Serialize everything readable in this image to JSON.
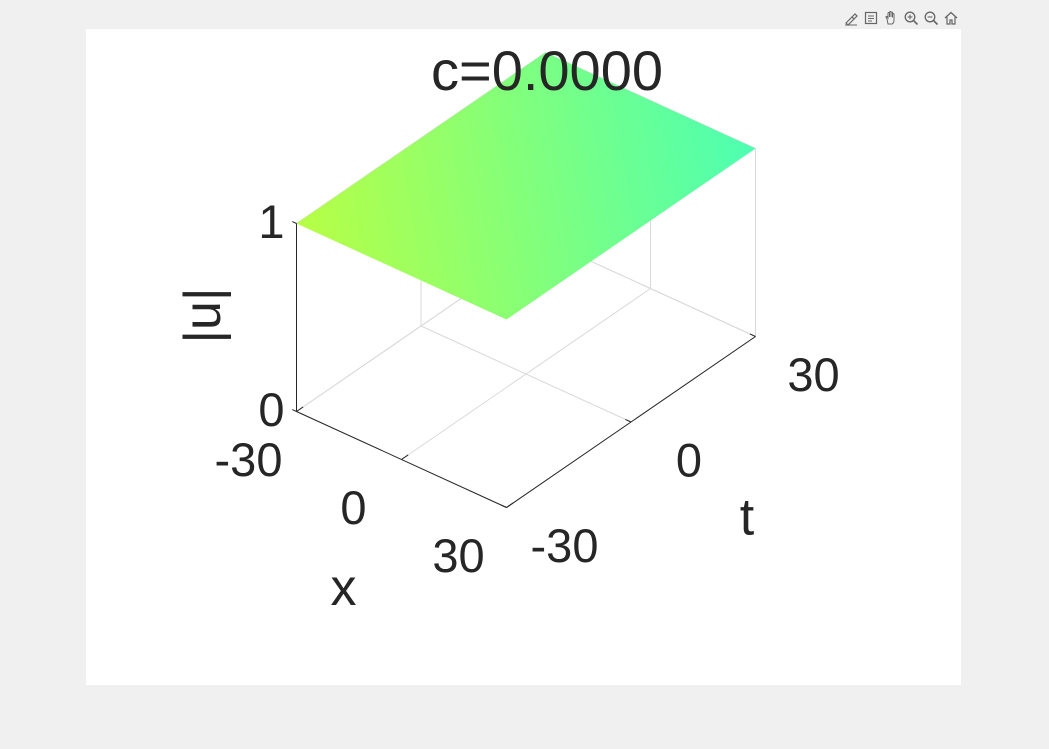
{
  "toolbar": {
    "buttons": [
      {
        "name": "brush-data-icon"
      },
      {
        "name": "data-tips-icon"
      },
      {
        "name": "pan-icon"
      },
      {
        "name": "zoom-in-icon"
      },
      {
        "name": "zoom-out-icon"
      },
      {
        "name": "home-view-icon"
      }
    ]
  },
  "chart_data": {
    "type": "surface",
    "title": "c=0.0000",
    "xlabel": "x",
    "ylabel": "t",
    "zlabel": "|u|",
    "x_ticks": [
      -30,
      0,
      30
    ],
    "y_ticks": [
      -30,
      0,
      30
    ],
    "z_ticks": [
      0,
      1
    ],
    "xlim": [
      -30,
      30
    ],
    "ylim": [
      -30,
      30
    ],
    "zlim": [
      0,
      1
    ],
    "surface_value": 1,
    "colors": {
      "near_corner": "#b7ff45",
      "far_corner": "#4dffb2",
      "axis": "#262626",
      "grid": "#d9d9d9"
    }
  }
}
